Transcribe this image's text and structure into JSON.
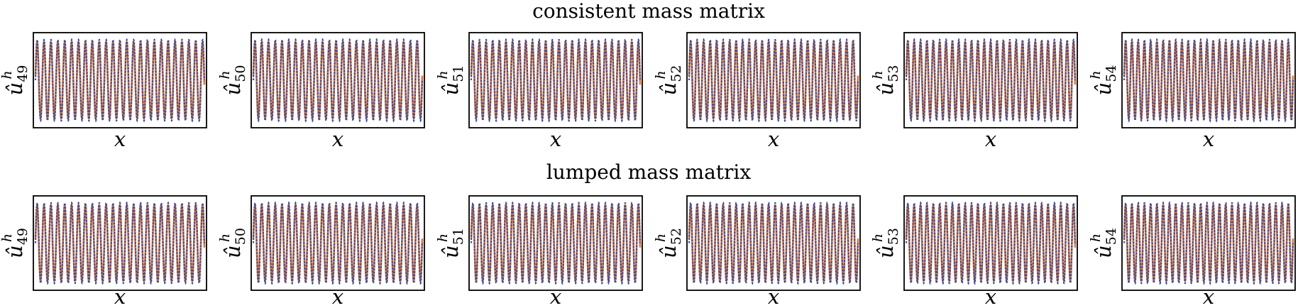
{
  "colors": {
    "series_1": "#3b4a9a",
    "series_2": "#d9773a"
  },
  "chart_data": [
    {
      "type": "line",
      "title": "consistent mass matrix",
      "panels": [
        {
          "ylabel": "û",
          "sup": "h",
          "sub": "49",
          "xlabel": "x",
          "mode": 49,
          "grid": false
        },
        {
          "ylabel": "û",
          "sup": "h",
          "sub": "50",
          "xlabel": "x",
          "mode": 50,
          "grid": false
        },
        {
          "ylabel": "û",
          "sup": "h",
          "sub": "51",
          "xlabel": "x",
          "mode": 51,
          "grid": false
        },
        {
          "ylabel": "û",
          "sup": "h",
          "sub": "52",
          "xlabel": "x",
          "mode": 52,
          "grid": false
        },
        {
          "ylabel": "û",
          "sup": "h",
          "sub": "53",
          "xlabel": "x",
          "mode": 53,
          "grid": false
        },
        {
          "ylabel": "û",
          "sup": "h",
          "sub": "54",
          "xlabel": "x",
          "mode": 54,
          "grid": false
        }
      ]
    },
    {
      "type": "line",
      "title": "lumped mass matrix",
      "panels": [
        {
          "ylabel": "û",
          "sup": "h",
          "sub": "49",
          "xlabel": "x",
          "mode": 49,
          "grid": false
        },
        {
          "ylabel": "û",
          "sup": "h",
          "sub": "50",
          "xlabel": "x",
          "mode": 50,
          "grid": false
        },
        {
          "ylabel": "û",
          "sup": "h",
          "sub": "51",
          "xlabel": "x",
          "mode": 51,
          "grid": false
        },
        {
          "ylabel": "û",
          "sup": "h",
          "sub": "52",
          "xlabel": "x",
          "mode": 52,
          "grid": false
        },
        {
          "ylabel": "û",
          "sup": "h",
          "sub": "53",
          "xlabel": "x",
          "mode": 53,
          "grid": false
        },
        {
          "ylabel": "û",
          "sup": "h",
          "sub": "54",
          "xlabel": "x",
          "mode": 54,
          "grid": false
        }
      ]
    }
  ]
}
